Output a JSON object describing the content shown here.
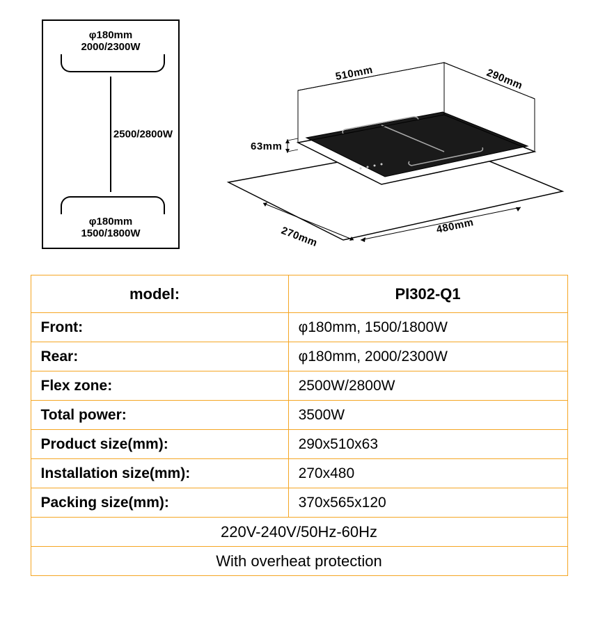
{
  "schematic": {
    "top_zone_diam": "φ180mm",
    "top_zone_power": "2000/2300W",
    "center_power": "2500/2800W",
    "bot_zone_diam": "φ180mm",
    "bot_zone_power": "1500/1800W",
    "box_border_color": "#000000"
  },
  "iso_diagram": {
    "width_mm": "510mm",
    "depth_mm": "290mm",
    "height_mm": "63mm",
    "cutout_depth_mm": "270mm",
    "cutout_width_mm": "480mm",
    "top_color": "#1a1a1a",
    "counter_color": "#ffffff",
    "line_color": "#000000"
  },
  "spec_table": {
    "border_color": "#f5a623",
    "text_color": "#000000",
    "header_label": "model:",
    "header_value": "PI302-Q1",
    "rows": [
      {
        "label": "Front:",
        "value": "φ180mm, 1500/1800W"
      },
      {
        "label": "Rear:",
        "value": "φ180mm, 2000/2300W"
      },
      {
        "label": "Flex zone:",
        "value": "2500W/2800W"
      },
      {
        "label": "Total power:",
        "value": "3500W"
      },
      {
        "label": "Product size(mm):",
        "value": "290x510x63"
      },
      {
        "label": "Installation size(mm):",
        "value": "270x480"
      },
      {
        "label": "Packing size(mm):",
        "value": "370x565x120"
      }
    ],
    "footer1": "220V-240V/50Hz-60Hz",
    "footer2": "With overheat protection"
  }
}
